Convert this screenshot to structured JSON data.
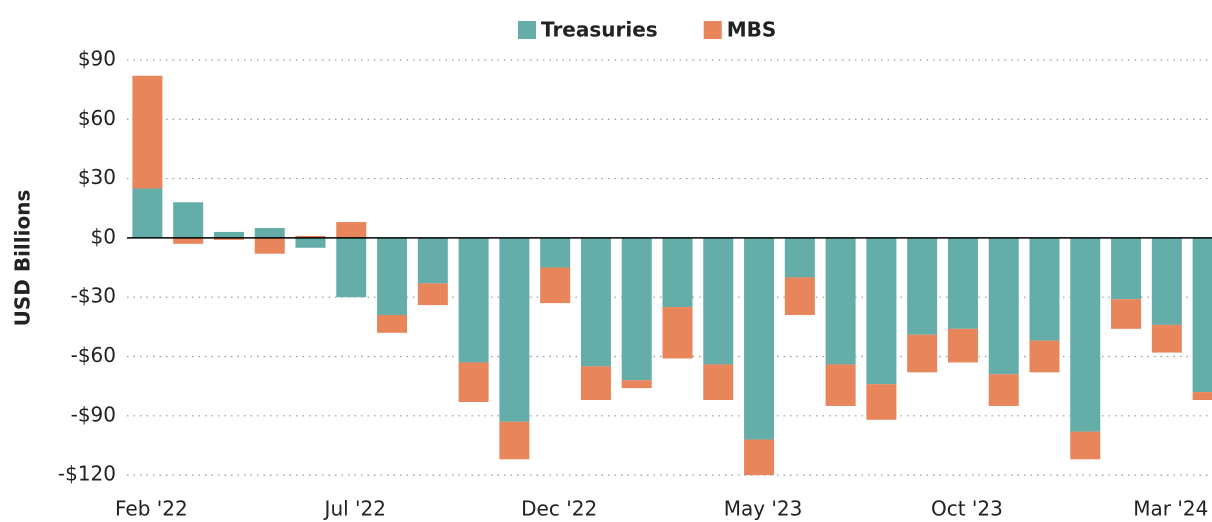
{
  "chart_data": {
    "type": "stacked_bar",
    "y_axis_label": "USD Billions",
    "categories": [
      "Feb '22",
      null,
      null,
      null,
      null,
      "Jul '22",
      null,
      null,
      null,
      null,
      "Dec '22",
      null,
      null,
      null,
      null,
      "May '23",
      null,
      null,
      null,
      null,
      "Oct '23",
      null,
      null,
      null,
      null,
      "Mar '24",
      null
    ],
    "series": [
      {
        "name": "Treasuries",
        "color": "#64ada8",
        "values": [
          25,
          18,
          3,
          5,
          -5,
          -30,
          -39,
          -23,
          -63,
          -93,
          -15,
          -65,
          -72,
          -35,
          -64,
          -102,
          -20,
          -64,
          -74,
          -49,
          -46,
          -69,
          -52,
          -98,
          -31,
          -44,
          -78
        ]
      },
      {
        "name": "MBS",
        "color": "#e8855a",
        "values": [
          57,
          -3,
          -1,
          -8,
          1,
          8,
          -9,
          -11,
          -20,
          -19,
          -18,
          -17,
          -4,
          -26,
          -18,
          -18,
          -19,
          -21,
          -18,
          -19,
          -17,
          -16,
          -16,
          -14,
          -15,
          -14,
          -4
        ]
      }
    ],
    "ylim": [
      -125,
      92
    ],
    "yticks": [
      {
        "value": 90,
        "label": "$90"
      },
      {
        "value": 60,
        "label": "$60"
      },
      {
        "value": 30,
        "label": "$30"
      },
      {
        "value": 0,
        "label": "$0"
      },
      {
        "value": -30,
        "label": "-$30"
      },
      {
        "value": -60,
        "label": "-$60"
      },
      {
        "value": -90,
        "label": "-$90"
      },
      {
        "value": -120,
        "label": "-$120"
      }
    ],
    "grid": true,
    "legend": "top"
  }
}
